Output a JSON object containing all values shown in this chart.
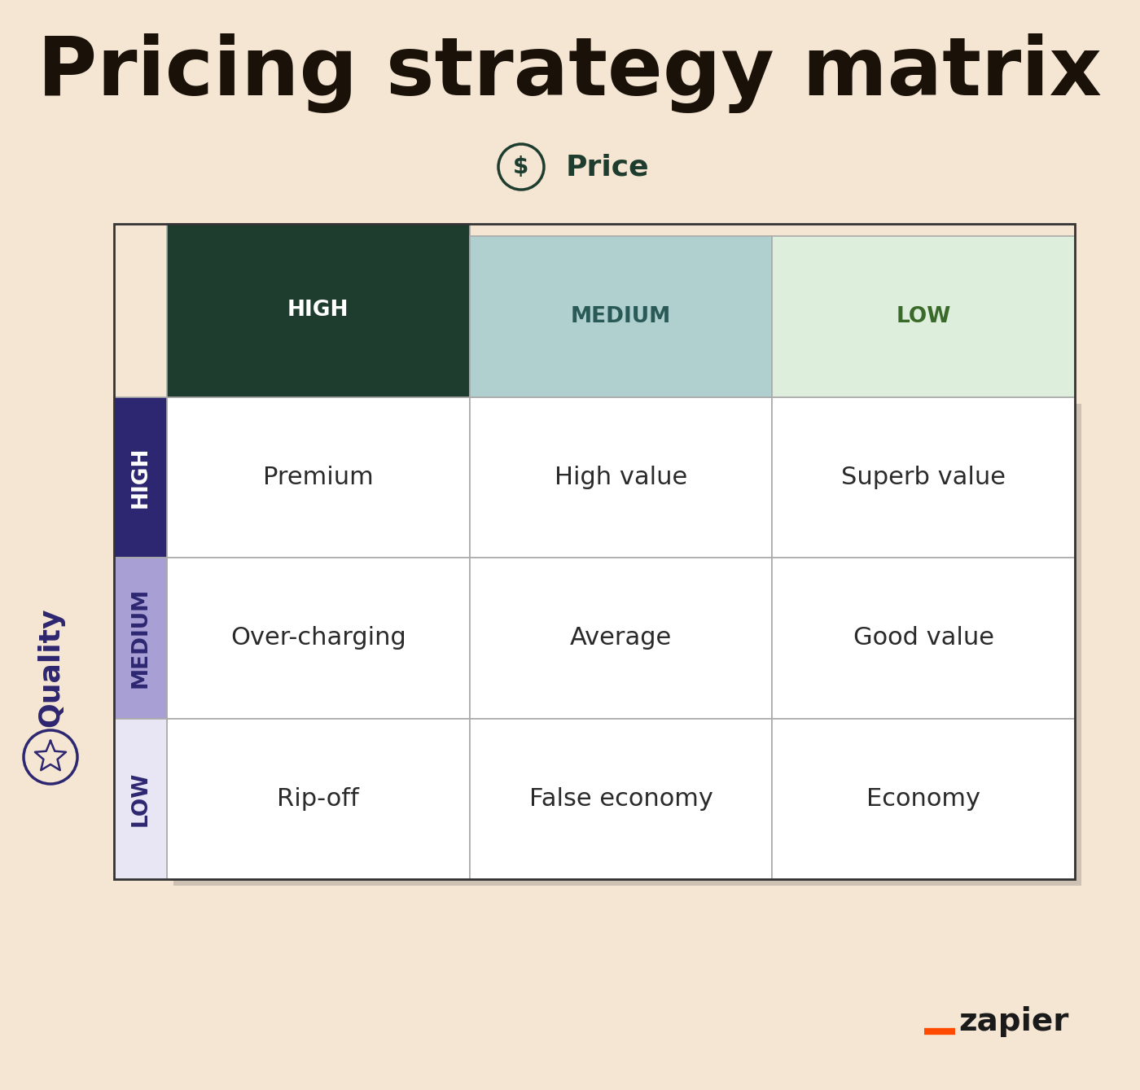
{
  "title": "Pricing strategy matrix",
  "title_color": "#1a1209",
  "background_color": "#f5e6d3",
  "price_label": "Price",
  "quality_label": "Quality",
  "price_header_colors": [
    "#1e3d2f",
    "#afd0ce",
    "#ddeedd"
  ],
  "price_headers": [
    "HIGH",
    "MEDIUM",
    "LOW"
  ],
  "quality_header_colors": [
    "#2d2670",
    "#a89fd4",
    "#e8e5f5"
  ],
  "quality_headers": [
    "HIGH",
    "MEDIUM",
    "LOW"
  ],
  "cell_text_color": "#2a2a2a",
  "grid_line_color": "#aaaaaa",
  "cells": [
    [
      "Premium",
      "High value",
      "Superb value"
    ],
    [
      "Over-charging",
      "Average",
      "Good value"
    ],
    [
      "Rip-off",
      "False economy",
      "Economy"
    ]
  ],
  "price_icon_color": "#1e3d2f",
  "quality_icon_color": "#2d2670",
  "zapier_orange": "#ff4a00",
  "zapier_text_color": "#1a1a1a",
  "header_text_color_price": [
    "#ffffff",
    "#2a5a58",
    "#3a6a2a"
  ],
  "header_text_color_quality": [
    "#ffffff",
    "#2d2670",
    "#2d2670"
  ],
  "title_fontsize": 72,
  "header_fontsize": 19,
  "cell_fontsize": 22,
  "label_fontsize": 26
}
